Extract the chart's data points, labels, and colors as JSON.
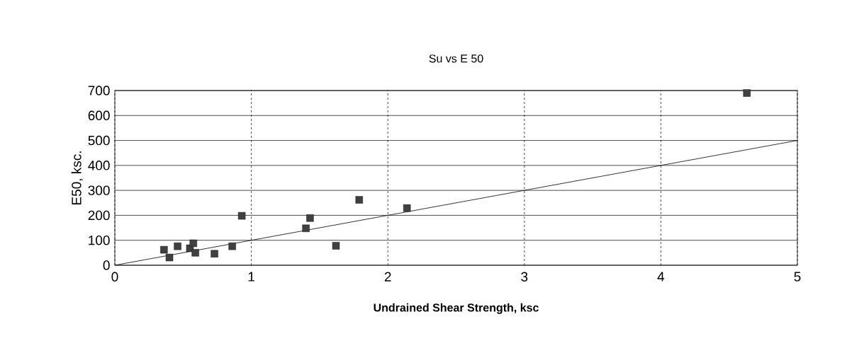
{
  "chart_data": {
    "type": "scatter",
    "title": "Su vs E 50",
    "xlabel": "Undrained Shear Strength, ksc",
    "ylabel": "E50, ksc.",
    "xlim": [
      0,
      5
    ],
    "ylim": [
      0,
      700
    ],
    "xticks": [
      0,
      1,
      2,
      3,
      4,
      5
    ],
    "yticks": [
      0,
      100,
      200,
      300,
      400,
      500,
      600,
      700
    ],
    "grid": true,
    "series": [
      {
        "marker": "square",
        "color": "#404040",
        "x": [
          0.36,
          0.4,
          0.46,
          0.55,
          0.575,
          0.59,
          0.73,
          0.86,
          0.93,
          1.4,
          1.43,
          1.62,
          1.79,
          2.14,
          4.63
        ],
        "values": [
          62,
          31,
          76,
          68,
          88,
          50,
          46,
          76,
          198,
          148,
          189,
          78,
          262,
          229,
          690
        ]
      },
      {
        "type": "line",
        "color": "#000000",
        "x": [
          0,
          5
        ],
        "values": [
          0,
          500
        ]
      }
    ]
  }
}
